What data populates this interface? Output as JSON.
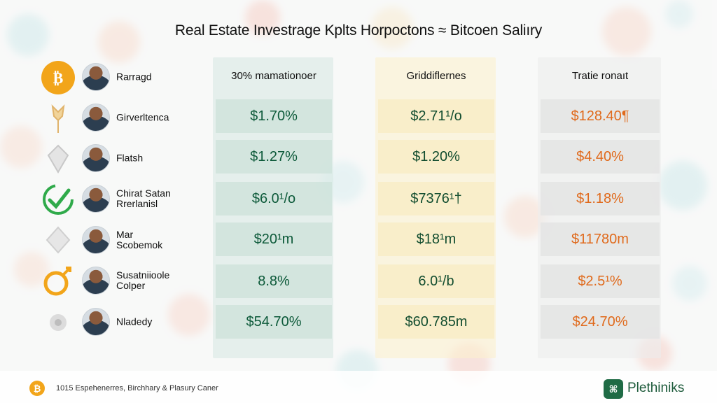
{
  "title": "Real Estate Investrage Kplts Horpoctons ≈ Bitcoen Saliıry",
  "columns": [
    {
      "header": "30% mamationoer"
    },
    {
      "header": "Griddiflernes"
    },
    {
      "header": "Tratie ronaıt"
    }
  ],
  "rows": [
    {
      "icon": "bitcoin-icon",
      "name": "Rarragd",
      "values": [
        "$1.70%",
        "$2.71¹/o",
        "$128.40¶"
      ]
    },
    {
      "icon": "wheat-icon",
      "name": "Girverltenca",
      "values": [
        "$1.27%",
        "$1.20%",
        "$4.40%"
      ]
    },
    {
      "icon": "shield-icon",
      "name": "Flatsh",
      "values": [
        "$6.0¹/o",
        "$7376¹†",
        "$1.18%"
      ]
    },
    {
      "icon": "check-icon",
      "name": "Chirat Satan\nRrerlanisl",
      "values": [
        "$20¹m",
        "$18¹m",
        "$11780m"
      ]
    },
    {
      "icon": "diamond-icon",
      "name": "Mar\nScobemok",
      "values": [
        "8.8%",
        "6.0¹/b",
        "$2.5¹%"
      ]
    },
    {
      "icon": "ring-icon",
      "name": "Susatniioole\nColper",
      "values": [
        "$54.70%",
        "$60.785m",
        "$24.70%"
      ]
    },
    {
      "icon": "flower-icon",
      "name": "Nladedy",
      "values": []
    }
  ],
  "footer": {
    "text": "1015 Espehenerres, Birchhary & Plasury Caner",
    "brand": "Plethiniks",
    "coin_glyph": "₿",
    "logo_glyph": "⌘"
  },
  "colors": {
    "bitcoin": "#f2a51a",
    "green": "#0d5a3a",
    "orange": "#e06a1c",
    "panel_green": "#d6e8e2",
    "panel_yellow": "#fcf0ce",
    "panel_grey": "#ececec"
  }
}
